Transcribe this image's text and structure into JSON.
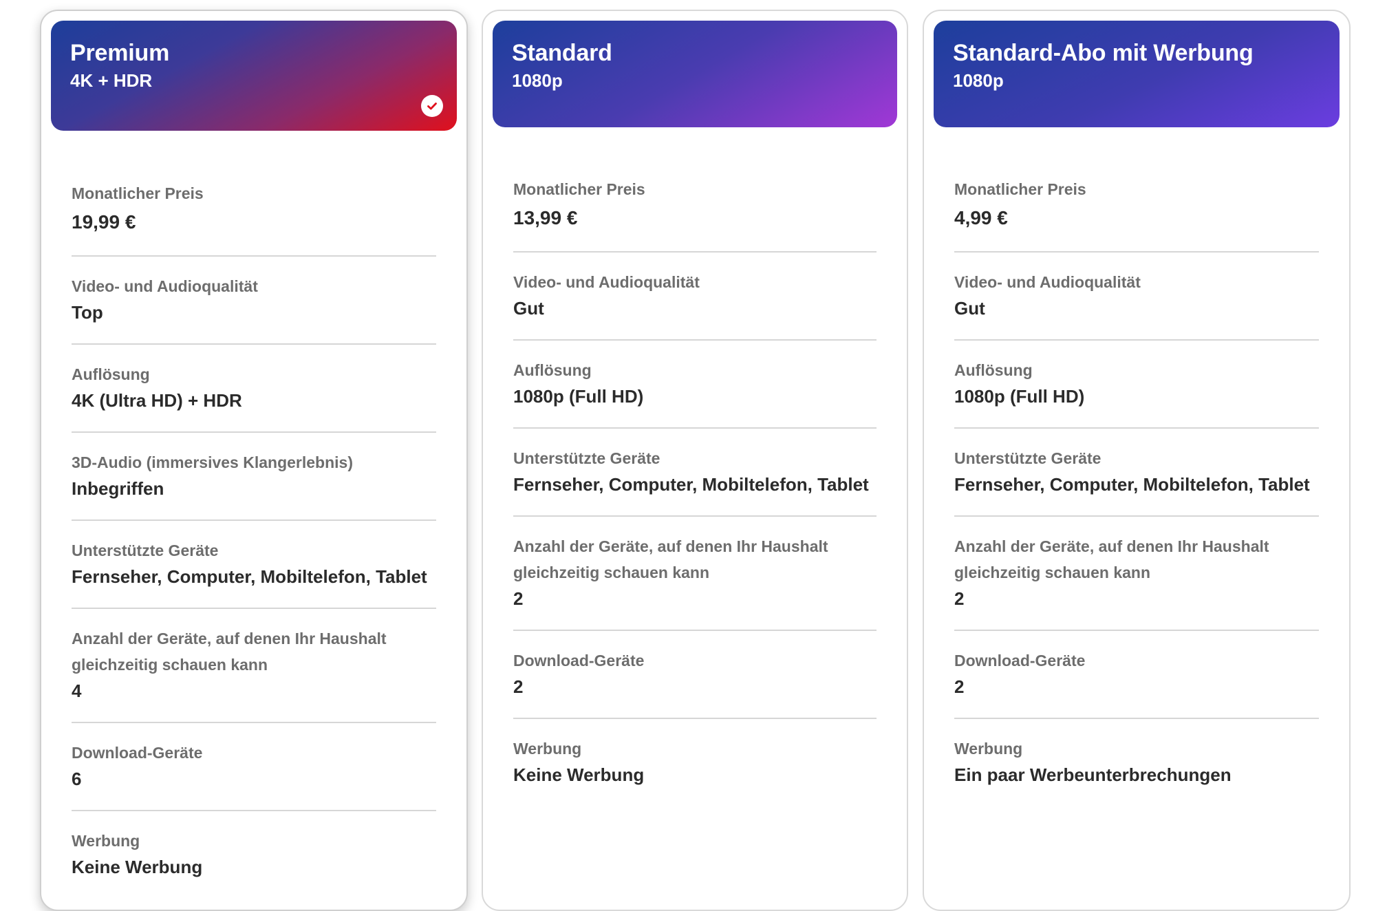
{
  "plans": [
    {
      "name": "Premium",
      "quality": "4K + HDR",
      "selected": true,
      "colors": {
        "gradient_start": "#1d3e9a",
        "gradient_end": "#e0101c"
      },
      "features": [
        {
          "label": "Monatlicher Preis",
          "value": "19,99 €"
        },
        {
          "label": "Video- und Audioqualität",
          "value": "Top"
        },
        {
          "label": "Auflösung",
          "value": "4K (Ultra HD) + HDR"
        },
        {
          "label": "3D-Audio (immersives Klangerlebnis)",
          "value": "Inbegriffen"
        },
        {
          "label": "Unterstützte Geräte",
          "value": "Fernseher, Computer, Mobiltelefon, Tablet"
        },
        {
          "label": "Anzahl der Geräte, auf denen Ihr Haushalt gleichzeitig schauen kann",
          "value": "4"
        },
        {
          "label": "Download-Geräte",
          "value": "6"
        },
        {
          "label": "Werbung",
          "value": "Keine Werbung"
        }
      ]
    },
    {
      "name": "Standard",
      "quality": "1080p",
      "selected": false,
      "colors": {
        "gradient_start": "#1d3f9c",
        "gradient_end": "#a138d6"
      },
      "features": [
        {
          "label": "Monatlicher Preis",
          "value": "13,99 €"
        },
        {
          "label": "Video- und Audioqualität",
          "value": "Gut"
        },
        {
          "label": "Auflösung",
          "value": "1080p (Full HD)"
        },
        {
          "label": "Unterstützte Geräte",
          "value": "Fernseher, Computer, Mobiltelefon, Tablet"
        },
        {
          "label": "Anzahl der Geräte, auf denen Ihr Haushalt gleichzeitig schauen kann",
          "value": "2"
        },
        {
          "label": "Download-Geräte",
          "value": "2"
        },
        {
          "label": "Werbung",
          "value": "Keine Werbung"
        }
      ]
    },
    {
      "name": "Standard-Abo mit Werbung",
      "quality": "1080p",
      "selected": false,
      "colors": {
        "gradient_start": "#1d3f9c",
        "gradient_end": "#6b3de0"
      },
      "features": [
        {
          "label": "Monatlicher Preis",
          "value": "4,99 €"
        },
        {
          "label": "Video- und Audioqualität",
          "value": "Gut"
        },
        {
          "label": "Auflösung",
          "value": "1080p (Full HD)"
        },
        {
          "label": "Unterstützte Geräte",
          "value": "Fernseher, Computer, Mobiltelefon, Tablet"
        },
        {
          "label": "Anzahl der Geräte, auf denen Ihr Haushalt gleichzeitig schauen kann",
          "value": "2"
        },
        {
          "label": "Download-Geräte",
          "value": "2"
        },
        {
          "label": "Werbung",
          "value": "Ein paar Werbeunterbrechungen"
        }
      ]
    }
  ],
  "icons": {
    "selected_check": "check-circle-icon"
  }
}
